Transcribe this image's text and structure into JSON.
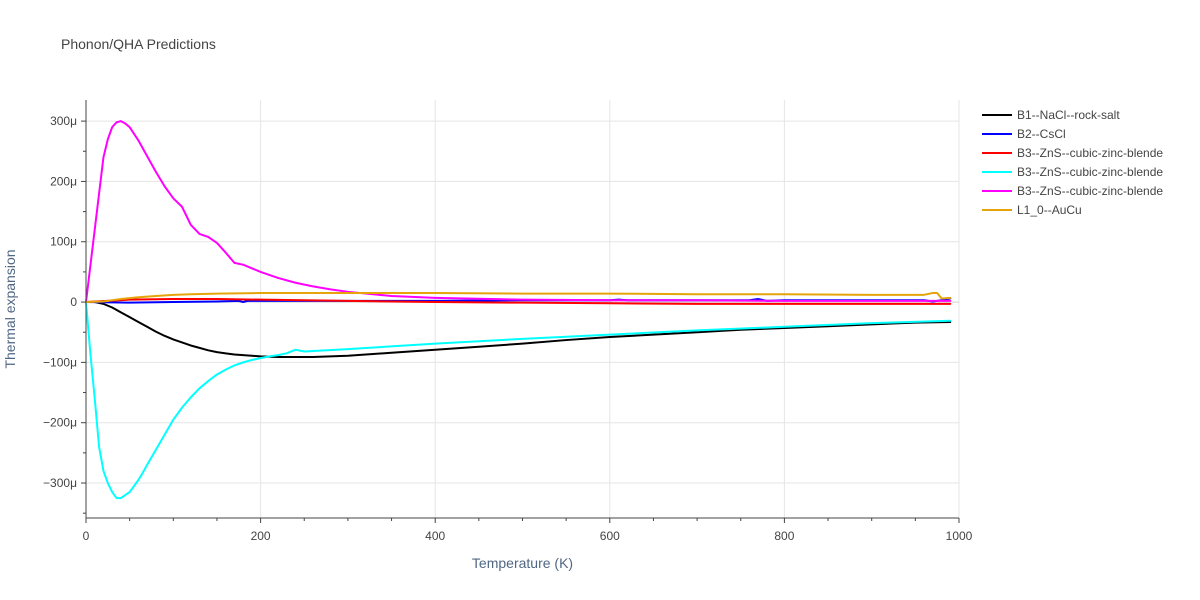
{
  "title": "Phonon/QHA Predictions",
  "chart_data": {
    "type": "line",
    "title": "Phonon/QHA Predictions",
    "xlabel": "Temperature (K)",
    "ylabel": "Thermal expansion",
    "xlim": [
      0,
      1000
    ],
    "ylim": [
      -0.000358,
      0.000335
    ],
    "x_ticks": [
      0,
      200,
      400,
      600,
      800,
      1000
    ],
    "x_tick_labels": [
      "0",
      "200",
      "400",
      "600",
      "800",
      "1000"
    ],
    "y_ticks": [
      -0.0003,
      -0.0002,
      -0.0001,
      0,
      0.0001,
      0.0002,
      0.0003
    ],
    "y_tick_labels": [
      "−300μ",
      "−200μ",
      "−100μ",
      "0",
      "100μ",
      "200μ",
      "300μ"
    ],
    "grid": true,
    "legend_position": "right",
    "series": [
      {
        "name": "B1--NaCl--rock-salt",
        "color": "#000000",
        "x": [
          0,
          10,
          20,
          30,
          40,
          50,
          60,
          70,
          80,
          90,
          100,
          110,
          120,
          130,
          140,
          150,
          160,
          170,
          180,
          190,
          200,
          220,
          240,
          260,
          280,
          300,
          350,
          400,
          450,
          500,
          550,
          600,
          650,
          700,
          750,
          800,
          850,
          900,
          950,
          990
        ],
        "y": [
          0,
          0,
          -3e-06,
          -9e-06,
          -1.7e-05,
          -2.5e-05,
          -3.3e-05,
          -4.1e-05,
          -4.9e-05,
          -5.6e-05,
          -6.2e-05,
          -6.7e-05,
          -7.2e-05,
          -7.6e-05,
          -8e-05,
          -8.3e-05,
          -8.5e-05,
          -8.7e-05,
          -8.8e-05,
          -8.9e-05,
          -9e-05,
          -9.1e-05,
          -9.1e-05,
          -9.1e-05,
          -9e-05,
          -8.9e-05,
          -8.4e-05,
          -7.9e-05,
          -7.4e-05,
          -6.9e-05,
          -6.3e-05,
          -5.8e-05,
          -5.4e-05,
          -5e-05,
          -4.6e-05,
          -4.3e-05,
          -4e-05,
          -3.7e-05,
          -3.4e-05,
          -3.3e-05
        ]
      },
      {
        "name": "B2--CsCl",
        "color": "#0000ff",
        "x": [
          0,
          50,
          100,
          150,
          175,
          180,
          185,
          200,
          300,
          400,
          500,
          600,
          610,
          620,
          700,
          760,
          770,
          780,
          800,
          900,
          960,
          970,
          980,
          990
        ],
        "y": [
          0,
          -1e-06,
          0,
          1e-06,
          2e-06,
          0,
          2e-06,
          2e-06,
          2e-06,
          2e-06,
          3e-06,
          3e-06,
          4e-06,
          3e-06,
          3e-06,
          3e-06,
          5e-06,
          2e-06,
          3e-06,
          3e-06,
          3e-06,
          1e-06,
          3e-06,
          6e-06
        ]
      },
      {
        "name": "B3--ZnS--cubic-zinc-blende",
        "color": "#ff0000",
        "x": [
          0,
          50,
          100,
          150,
          200,
          300,
          400,
          500,
          600,
          700,
          800,
          900,
          990
        ],
        "y": [
          0,
          4e-06,
          5e-06,
          5e-06,
          4e-06,
          2e-06,
          0,
          -1e-06,
          -2e-06,
          -3e-06,
          -3e-06,
          -3e-06,
          -3e-06
        ]
      },
      {
        "name": "B3--ZnS--cubic-zinc-blende",
        "color": "#00ffff",
        "x": [
          0,
          5,
          10,
          15,
          20,
          25,
          30,
          35,
          40,
          45,
          50,
          55,
          60,
          65,
          70,
          80,
          90,
          100,
          110,
          120,
          130,
          140,
          150,
          160,
          170,
          180,
          190,
          200,
          210,
          220,
          230,
          240,
          250,
          300,
          400,
          500,
          600,
          700,
          800,
          900,
          990
        ],
        "y": [
          0,
          -8.5e-05,
          -0.00016,
          -0.00024,
          -0.00028,
          -0.0003,
          -0.000315,
          -0.000325,
          -0.000325,
          -0.00032,
          -0.000315,
          -0.000305,
          -0.000295,
          -0.000283,
          -0.00027,
          -0.000245,
          -0.00022,
          -0.000195,
          -0.000175,
          -0.000158,
          -0.000143,
          -0.000131,
          -0.00012,
          -0.000112,
          -0.000105,
          -0.0001,
          -9.6e-05,
          -9.3e-05,
          -9e-05,
          -8.8e-05,
          -8.5e-05,
          -7.9e-05,
          -8.2e-05,
          -7.8e-05,
          -6.9e-05,
          -6.1e-05,
          -5.4e-05,
          -4.7e-05,
          -4.1e-05,
          -3.5e-05,
          -3.1e-05
        ]
      },
      {
        "name": "B3--ZnS--cubic-zinc-blende",
        "color": "#ff00ff",
        "x": [
          0,
          5,
          10,
          15,
          20,
          25,
          30,
          35,
          40,
          45,
          50,
          60,
          70,
          80,
          90,
          100,
          110,
          120,
          130,
          140,
          150,
          160,
          170,
          180,
          190,
          200,
          220,
          240,
          260,
          280,
          300,
          350,
          400,
          500,
          600,
          700,
          800,
          900,
          990
        ],
        "y": [
          0,
          6e-05,
          0.00012,
          0.00018,
          0.00024,
          0.00027,
          0.00029,
          0.000298,
          0.0003,
          0.000296,
          0.00029,
          0.000268,
          0.000242,
          0.000216,
          0.000192,
          0.000172,
          0.000158,
          0.000128,
          0.000113,
          0.000108,
          9.8e-05,
          8.2e-05,
          6.5e-05,
          6.2e-05,
          5.6e-05,
          5e-05,
          4e-05,
          3.2e-05,
          2.6e-05,
          2.1e-05,
          1.7e-05,
          1e-05,
          7e-06,
          4e-06,
          3e-06,
          3e-06,
          2e-06,
          2e-06,
          2e-06
        ]
      },
      {
        "name": "L1_0--AuCu",
        "color": "#e5a50a",
        "x": [
          0,
          20,
          40,
          60,
          80,
          100,
          120,
          150,
          200,
          300,
          400,
          500,
          600,
          700,
          800,
          900,
          960,
          970,
          975,
          980,
          990
        ],
        "y": [
          0,
          1e-06,
          5e-06,
          8e-06,
          1e-05,
          1.2e-05,
          1.3e-05,
          1.4e-05,
          1.5e-05,
          1.5e-05,
          1.5e-05,
          1.4e-05,
          1.4e-05,
          1.3e-05,
          1.3e-05,
          1.2e-05,
          1.2e-05,
          1.5e-05,
          1.5e-05,
          6e-06,
          7e-06
        ]
      }
    ]
  }
}
